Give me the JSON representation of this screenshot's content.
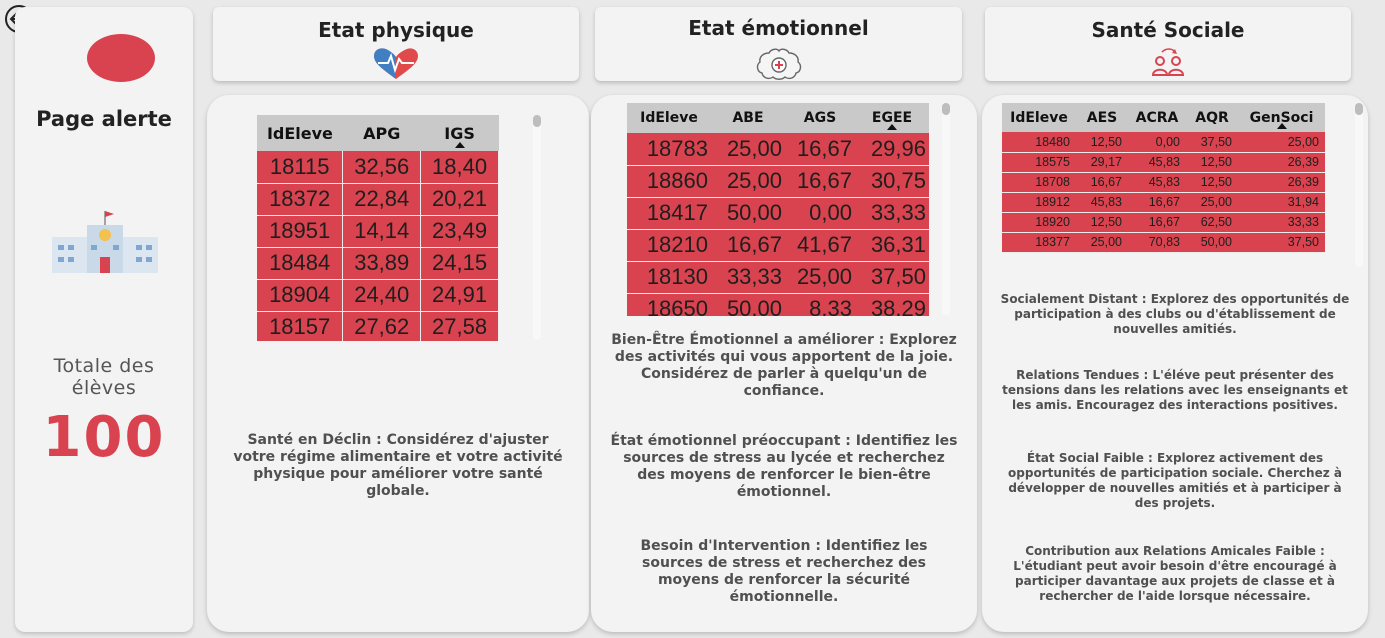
{
  "sidebar": {
    "page_title": "Page alerte",
    "total_label": "Totale des élèves",
    "total_value": "100",
    "icons": [
      "back-arrow-icon",
      "school-building-icon"
    ]
  },
  "headers": [
    {
      "title": "Etat physique",
      "icon": "heart-pulse-icon"
    },
    {
      "title": "Etat émotionnel",
      "icon": "brain-icon"
    },
    {
      "title": "Santé Sociale",
      "icon": "people-exchange-icon"
    }
  ],
  "physique": {
    "columns": [
      "IdEleve",
      "APG",
      "IGS"
    ],
    "sorted_column": "IGS",
    "rows": [
      [
        "18115",
        "32,56",
        "18,40"
      ],
      [
        "18372",
        "22,84",
        "20,21"
      ],
      [
        "18951",
        "14,14",
        "23,49"
      ],
      [
        "18484",
        "33,89",
        "24,15"
      ],
      [
        "18904",
        "24,40",
        "24,91"
      ],
      [
        "18157",
        "27,62",
        "27,58"
      ]
    ],
    "notes": [
      "Santé en Déclin : Considérez d'ajuster votre régime alimentaire et votre activité physique pour améliorer votre santé globale."
    ]
  },
  "emotionnel": {
    "columns": [
      "IdEleve",
      "ABE",
      "AGS",
      "EGEE"
    ],
    "sorted_column": "EGEE",
    "rows": [
      [
        "18783",
        "25,00",
        "16,67",
        "29,96"
      ],
      [
        "18860",
        "25,00",
        "16,67",
        "30,75"
      ],
      [
        "18417",
        "50,00",
        "0,00",
        "33,33"
      ],
      [
        "18210",
        "16,67",
        "41,67",
        "36,31"
      ],
      [
        "18130",
        "33,33",
        "25,00",
        "37,50"
      ],
      [
        "18650",
        "50,00",
        "8,33",
        "38,29"
      ]
    ],
    "notes": [
      "Bien-Être Émotionnel a améliorer : Explorez des activités qui vous apportent de la joie. Considérez de parler à quelqu'un de confiance.",
      "État émotionnel préoccupant : Identifiez les sources de stress au lycée et recherchez des moyens de renforcer le bien-être émotionnel.",
      "Besoin d'Intervention : Identifiez les sources de stress et recherchez des moyens de renforcer la sécurité émotionnelle."
    ]
  },
  "sociale": {
    "columns": [
      "IdEleve",
      "AES",
      "ACRA",
      "AQR",
      "GenSoci"
    ],
    "sorted_column": "GenSoci",
    "rows": [
      [
        "18480",
        "12,50",
        "0,00",
        "37,50",
        "25,00"
      ],
      [
        "18575",
        "29,17",
        "45,83",
        "12,50",
        "26,39"
      ],
      [
        "18708",
        "16,67",
        "45,83",
        "12,50",
        "26,39"
      ],
      [
        "18912",
        "45,83",
        "16,67",
        "25,00",
        "31,94"
      ],
      [
        "18920",
        "12,50",
        "16,67",
        "62,50",
        "33,33"
      ],
      [
        "18377",
        "25,00",
        "70,83",
        "50,00",
        "37,50"
      ]
    ],
    "notes": [
      "Socialement Distant : Explorez des opportunités de participation à des clubs ou d'établissement de nouvelles amitiés.",
      "Relations Tendues : L'éléve peut présenter des tensions dans les relations avec les enseignants et les amis. Encouragez des interactions positives.",
      "État Social Faible : Explorez activement des opportunités de participation sociale. Cherchez à développer de nouvelles amitiés et à participer à des projets.",
      "Contribution aux Relations Amicales Faible : L'étudiant peut avoir besoin d'être encouragé à participer davantage aux projets de classe et à rechercher de l'aide lorsque nécessaire."
    ]
  },
  "colors": {
    "alert_red": "#d8434f",
    "header_gray": "#c9c9c9",
    "card_bg": "#f3f3f3",
    "page_bg": "#e9e9e9"
  }
}
